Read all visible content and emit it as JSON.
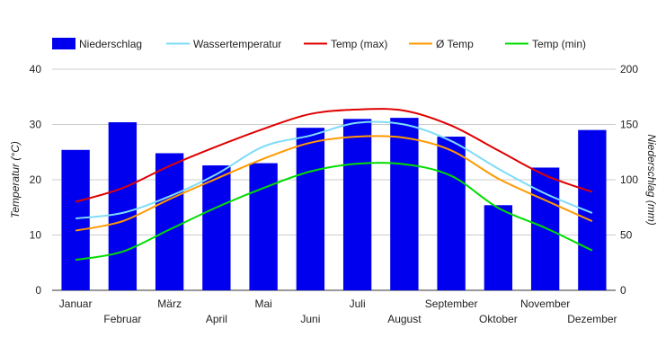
{
  "chart_data": {
    "type": "bar",
    "categories": [
      "Januar",
      "Februar",
      "März",
      "April",
      "Mai",
      "Juni",
      "Juli",
      "August",
      "September",
      "Oktober",
      "November",
      "Dezember"
    ],
    "series": [
      {
        "name": "Niederschlag",
        "kind": "bar",
        "axis": "right",
        "color": "#0000ee",
        "values": [
          127,
          152,
          124,
          113,
          115,
          147,
          155,
          156,
          139,
          77,
          111,
          145
        ]
      },
      {
        "name": "Wassertemperatur",
        "kind": "line",
        "axis": "left",
        "color": "#7fdcf7",
        "values": [
          13,
          14,
          17,
          21,
          26,
          28,
          30.3,
          30,
          27,
          22,
          17.5,
          14
        ]
      },
      {
        "name": "Temp (max)",
        "kind": "line",
        "axis": "left",
        "color": "#e00000",
        "values": [
          16,
          18.5,
          22.5,
          26,
          29.2,
          31.9,
          32.7,
          32.5,
          29.8,
          25.3,
          20.8,
          17.8
        ]
      },
      {
        "name": "Ø Temp",
        "kind": "line",
        "axis": "left",
        "color": "#ff9900",
        "values": [
          10.8,
          12.5,
          16.5,
          20.2,
          23.8,
          26.7,
          27.8,
          27.6,
          25.3,
          20.2,
          16.3,
          12.5
        ]
      },
      {
        "name": "Temp (min)",
        "kind": "line",
        "axis": "left",
        "color": "#00dd00",
        "values": [
          5.5,
          7,
          11,
          15,
          18.5,
          21.5,
          22.9,
          22.8,
          20.7,
          14.9,
          11.3,
          7.2
        ]
      }
    ],
    "y_left": {
      "label": "Temperatur (°C)",
      "range": [
        0,
        40
      ],
      "ticks": [
        0,
        10,
        20,
        30,
        40
      ]
    },
    "y_right": {
      "label": "Niederschlag (mm)",
      "range": [
        0,
        200
      ],
      "ticks": [
        0,
        50,
        100,
        150,
        200
      ]
    },
    "grid": true,
    "legend_position": "top"
  }
}
